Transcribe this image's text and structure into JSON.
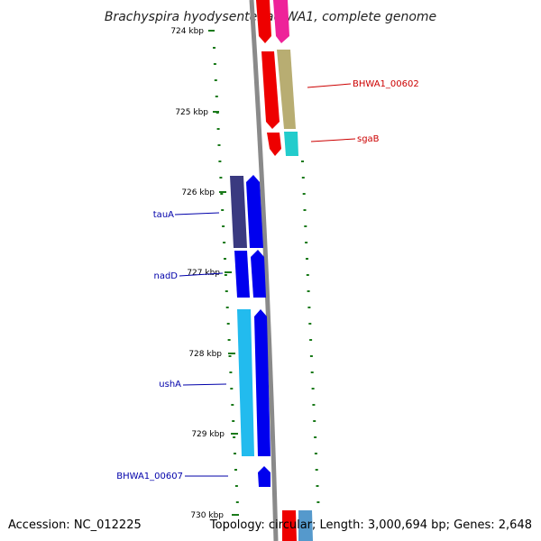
{
  "title": "Brachyspira hyodysenteriae WA1, complete genome",
  "accession": "Accession: NC_012225",
  "summary": "Topology: circular; Length: 3,000,694 bp; Genes: 2,648",
  "ticks": [
    {
      "label": "724 kbp"
    },
    {
      "label": "725 kbp"
    },
    {
      "label": "726 kbp"
    },
    {
      "label": "727 kbp"
    },
    {
      "label": "728 kbp"
    },
    {
      "label": "729 kbp"
    },
    {
      "label": "730 kbp"
    }
  ],
  "gene_labels": [
    {
      "name": "BHWA1_00602",
      "color": "#cc0000"
    },
    {
      "name": "sgaB",
      "color": "#cc0000"
    },
    {
      "name": "tauA",
      "color": "#0000aa"
    },
    {
      "name": "nadD",
      "color": "#0000aa"
    },
    {
      "name": "ushA",
      "color": "#0000aa"
    },
    {
      "name": "BHWA1_00607",
      "color": "#0000aa"
    }
  ],
  "colors": {
    "backbone": "#8a8a8a",
    "tick_green": "#1a7a1a",
    "forward_red": "#ee0000",
    "reverse_blue": "#0000ee",
    "olive": "#b8ad72",
    "cyan": "#22cccc",
    "navy": "#3a3a80",
    "sky": "#22bbee",
    "magenta": "#ee2299"
  }
}
